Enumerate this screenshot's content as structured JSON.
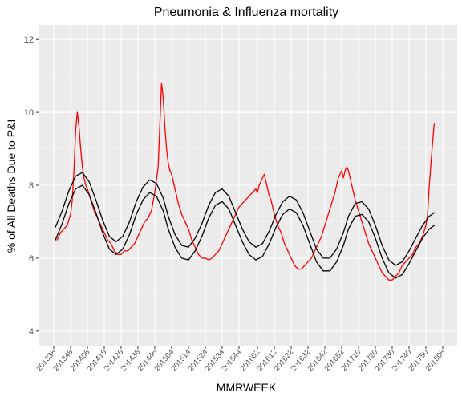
{
  "chart_data": {
    "type": "line",
    "title": "Pneumonia & Influenza mortality",
    "xlabel": "MMRWEEK",
    "ylabel": "% of All Deaths Due to P&I",
    "ylim": [
      3.6,
      12.4
    ],
    "y_ticks": [
      4,
      6,
      8,
      10,
      12
    ],
    "x_ticks": [
      "201338",
      "201348",
      "201406",
      "201416",
      "201426",
      "201436",
      "201446",
      "201504",
      "201514",
      "201524",
      "201534",
      "201544",
      "201602",
      "201612",
      "201622",
      "201632",
      "201642",
      "201652",
      "201710",
      "201720",
      "201730",
      "201740",
      "201750",
      "201808"
    ],
    "grid": true,
    "legend": "none",
    "series": [
      {
        "color": "#ff0000",
        "weeks": [
          "201340",
          "201342",
          "201344",
          "201346",
          "201348",
          "201349",
          "201350",
          "201351",
          "201352",
          "201401",
          "201402",
          "201403",
          "201404",
          "201405",
          "201406",
          "201408",
          "201410",
          "201412",
          "201414",
          "201416",
          "201418",
          "201420",
          "201422",
          "201424",
          "201426",
          "201428",
          "201430",
          "201432",
          "201434",
          "201436",
          "201438",
          "201440",
          "201442",
          "201444",
          "201446",
          "201448",
          "201450",
          "201451",
          "201452",
          "201501",
          "201502",
          "201503",
          "201504",
          "201505",
          "201506",
          "201508",
          "201510",
          "201512",
          "201514",
          "201516",
          "201518",
          "201520",
          "201522",
          "201524",
          "201526",
          "201528",
          "201530",
          "201532",
          "201534",
          "201536",
          "201538",
          "201540",
          "201542",
          "201544",
          "201546",
          "201548",
          "201550",
          "201552",
          "201601",
          "201602",
          "201603",
          "201604",
          "201605",
          "201606",
          "201607",
          "201608",
          "201609",
          "201610",
          "201611",
          "201612",
          "201614",
          "201616",
          "201618",
          "201620",
          "201622",
          "201624",
          "201626",
          "201628",
          "201630",
          "201632",
          "201634",
          "201636",
          "201638",
          "201640",
          "201642",
          "201644",
          "201646",
          "201648",
          "201650",
          "201652",
          "201701",
          "201702",
          "201703",
          "201704",
          "201705",
          "201706",
          "201707",
          "201708",
          "201710",
          "201712",
          "201714",
          "201716",
          "201718",
          "201720",
          "201722",
          "201724",
          "201726",
          "201728",
          "201730",
          "201732",
          "201734",
          "201736",
          "201738",
          "201740",
          "201742",
          "201744",
          "201746",
          "201748",
          "201750",
          "201751",
          "201752",
          "201801",
          "201802",
          "201803"
        ],
        "values": [
          6.5,
          6.7,
          6.8,
          6.9,
          7.2,
          7.6,
          8.4,
          9.5,
          10.0,
          9.6,
          9.0,
          8.5,
          8.2,
          8.0,
          7.9,
          7.6,
          7.3,
          7.1,
          6.9,
          6.7,
          6.5,
          6.4,
          6.2,
          6.1,
          6.1,
          6.2,
          6.2,
          6.3,
          6.4,
          6.6,
          6.8,
          7.0,
          7.1,
          7.3,
          7.8,
          8.5,
          10.8,
          10.4,
          9.6,
          9.0,
          8.6,
          8.4,
          8.3,
          8.1,
          7.9,
          7.5,
          7.2,
          7.0,
          6.8,
          6.5,
          6.3,
          6.1,
          6.0,
          6.0,
          5.95,
          6.0,
          6.1,
          6.2,
          6.4,
          6.6,
          6.8,
          7.0,
          7.2,
          7.4,
          7.5,
          7.6,
          7.7,
          7.8,
          7.9,
          7.8,
          8.0,
          8.1,
          8.2,
          8.3,
          8.1,
          7.9,
          7.7,
          7.6,
          7.4,
          7.2,
          6.9,
          6.7,
          6.4,
          6.2,
          6.0,
          5.8,
          5.7,
          5.7,
          5.8,
          5.9,
          6.0,
          6.2,
          6.4,
          6.6,
          6.9,
          7.2,
          7.5,
          7.8,
          8.2,
          8.4,
          8.2,
          8.4,
          8.5,
          8.4,
          8.2,
          8.0,
          7.8,
          7.6,
          7.3,
          7.0,
          6.7,
          6.4,
          6.2,
          6.0,
          5.8,
          5.6,
          5.5,
          5.4,
          5.4,
          5.5,
          5.6,
          5.8,
          5.9,
          6.0,
          6.1,
          6.3,
          6.4,
          6.6,
          6.9,
          7.2,
          8.0,
          8.6,
          9.2,
          9.7
        ]
      },
      {
        "color": "#000000",
        "weeks": [
          "201339",
          "201343",
          "201347",
          "201351",
          "201403",
          "201407",
          "201411",
          "201415",
          "201419",
          "201423",
          "201427",
          "201431",
          "201435",
          "201439",
          "201443",
          "201447",
          "201451",
          "201502",
          "201506",
          "201510",
          "201514",
          "201518",
          "201522",
          "201526",
          "201530",
          "201534",
          "201538",
          "201542",
          "201546",
          "201550",
          "201601",
          "201605",
          "201609",
          "201613",
          "201617",
          "201621",
          "201625",
          "201629",
          "201633",
          "201637",
          "201641",
          "201645",
          "201649",
          "201653",
          "201704",
          "201708",
          "201712",
          "201716",
          "201720",
          "201724",
          "201728",
          "201732",
          "201736",
          "201740",
          "201744",
          "201748",
          "201752",
          "201803"
        ],
        "values": [
          6.85,
          7.3,
          7.85,
          8.25,
          8.35,
          8.1,
          7.6,
          7.05,
          6.6,
          6.45,
          6.6,
          7.0,
          7.55,
          7.95,
          8.15,
          8.05,
          7.65,
          7.15,
          6.65,
          6.35,
          6.3,
          6.55,
          6.95,
          7.45,
          7.8,
          7.9,
          7.7,
          7.25,
          6.8,
          6.45,
          6.3,
          6.4,
          6.75,
          7.2,
          7.55,
          7.7,
          7.6,
          7.25,
          6.75,
          6.25,
          6.0,
          6.0,
          6.25,
          6.7,
          7.15,
          7.5,
          7.55,
          7.35,
          6.9,
          6.35,
          5.95,
          5.8,
          5.9,
          6.2,
          6.55,
          6.9,
          7.15,
          7.25
        ]
      },
      {
        "color": "#000000",
        "weeks": [
          "201339",
          "201343",
          "201347",
          "201351",
          "201403",
          "201407",
          "201411",
          "201415",
          "201419",
          "201423",
          "201427",
          "201431",
          "201435",
          "201439",
          "201443",
          "201447",
          "201451",
          "201502",
          "201506",
          "201510",
          "201514",
          "201518",
          "201522",
          "201526",
          "201530",
          "201534",
          "201538",
          "201542",
          "201546",
          "201550",
          "201601",
          "201605",
          "201609",
          "201613",
          "201617",
          "201621",
          "201625",
          "201629",
          "201633",
          "201637",
          "201641",
          "201645",
          "201649",
          "201653",
          "201704",
          "201708",
          "201712",
          "201716",
          "201720",
          "201724",
          "201728",
          "201732",
          "201736",
          "201740",
          "201744",
          "201748",
          "201752",
          "201803"
        ],
        "values": [
          6.5,
          6.95,
          7.5,
          7.9,
          8.0,
          7.75,
          7.25,
          6.7,
          6.25,
          6.1,
          6.25,
          6.65,
          7.2,
          7.6,
          7.8,
          7.7,
          7.3,
          6.8,
          6.3,
          6.0,
          5.95,
          6.2,
          6.6,
          7.1,
          7.45,
          7.55,
          7.35,
          6.9,
          6.45,
          6.1,
          5.95,
          6.05,
          6.4,
          6.85,
          7.2,
          7.35,
          7.25,
          6.9,
          6.4,
          5.9,
          5.65,
          5.65,
          5.9,
          6.35,
          6.8,
          7.15,
          7.2,
          7.0,
          6.55,
          6.0,
          5.6,
          5.45,
          5.55,
          5.85,
          6.2,
          6.55,
          6.8,
          6.9
        ]
      }
    ]
  }
}
